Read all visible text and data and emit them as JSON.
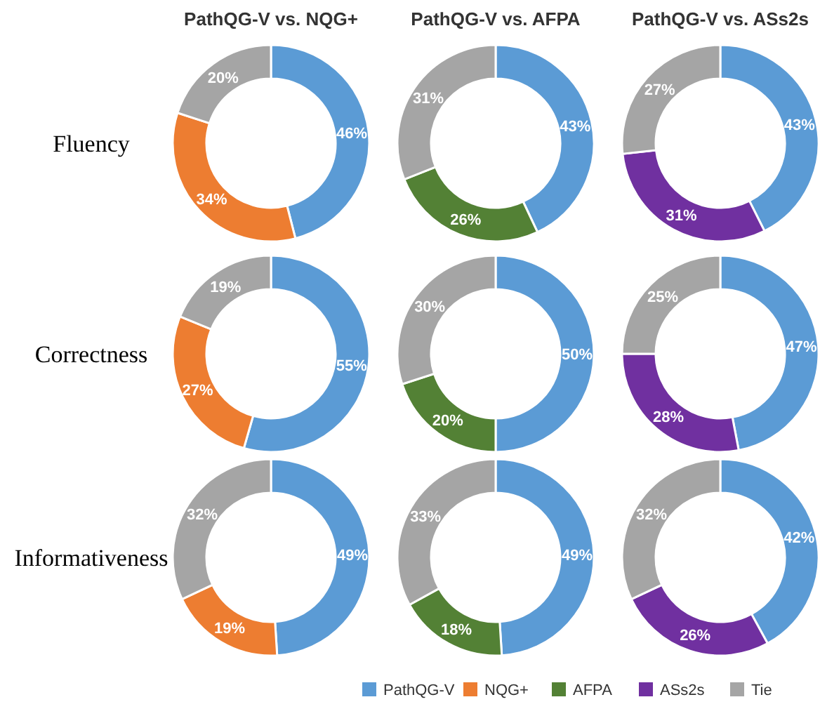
{
  "chart_data": [
    {
      "type": "donut",
      "title": "PathQG-V  vs. NQG+",
      "ylabel": "Fluency",
      "categories": [
        "PathQG-V",
        "NQG+",
        "Tie"
      ],
      "values": [
        46,
        34,
        20
      ],
      "value_labels": [
        "46%",
        "34%",
        "20%"
      ],
      "colors": [
        "#5b9bd5",
        "#ed7d31",
        "#a5a5a5"
      ],
      "legend": "bottom"
    },
    {
      "type": "donut",
      "title": "PathQG-V  vs. AFPA",
      "categories": [
        null,
        "AFPA",
        null
      ],
      "values": [
        43,
        26,
        31
      ],
      "value_labels": [
        "43%",
        "26%",
        "31%"
      ],
      "colors": [
        "#5b9bd5",
        "#538135",
        "#a5a5a5"
      ],
      "legend": "bottom"
    },
    {
      "type": "donut",
      "title": "PathQG-V  vs. ASs2s",
      "categories": [
        null,
        "ASs2s",
        null
      ],
      "values": [
        43,
        31,
        27
      ],
      "value_labels": [
        "43%",
        "31%",
        "27%"
      ],
      "colors": [
        "#5b9bd5",
        "#7030a0",
        "#a5a5a5"
      ],
      "legend": "bottom"
    },
    {
      "type": "donut",
      "ylabel": "Correctness",
      "categories": [
        null,
        null,
        null
      ],
      "values": [
        55,
        27,
        19
      ],
      "value_labels": [
        "55%",
        "27%",
        "19%"
      ],
      "colors": [
        "#5b9bd5",
        "#ed7d31",
        "#a5a5a5"
      ]
    },
    {
      "type": "donut",
      "categories": [
        null,
        null,
        null
      ],
      "values": [
        50,
        20,
        30
      ],
      "value_labels": [
        "50%",
        "20%",
        "30%"
      ],
      "colors": [
        "#5b9bd5",
        "#538135",
        "#a5a5a5"
      ]
    },
    {
      "type": "donut",
      "categories": [
        null,
        null,
        null
      ],
      "values": [
        47,
        28,
        25
      ],
      "value_labels": [
        "47%",
        "28%",
        "25%"
      ],
      "colors": [
        "#5b9bd5",
        "#7030a0",
        "#a5a5a5"
      ]
    },
    {
      "type": "donut",
      "ylabel": "Informativeness",
      "categories": [
        null,
        null,
        null
      ],
      "values": [
        49,
        19,
        32
      ],
      "value_labels": [
        "49%",
        "19%",
        "32%"
      ],
      "colors": [
        "#5b9bd5",
        "#ed7d31",
        "#a5a5a5"
      ]
    },
    {
      "type": "donut",
      "categories": [
        null,
        null,
        null
      ],
      "values": [
        49,
        18,
        33
      ],
      "value_labels": [
        "49%",
        "18%",
        "33%"
      ],
      "colors": [
        "#5b9bd5",
        "#538135",
        "#a5a5a5"
      ]
    },
    {
      "type": "donut",
      "categories": [
        null,
        null,
        null
      ],
      "values": [
        42,
        26,
        32
      ],
      "value_labels": [
        "42%",
        "26%",
        "32%"
      ],
      "colors": [
        "#5b9bd5",
        "#7030a0",
        "#a5a5a5"
      ]
    }
  ]
}
